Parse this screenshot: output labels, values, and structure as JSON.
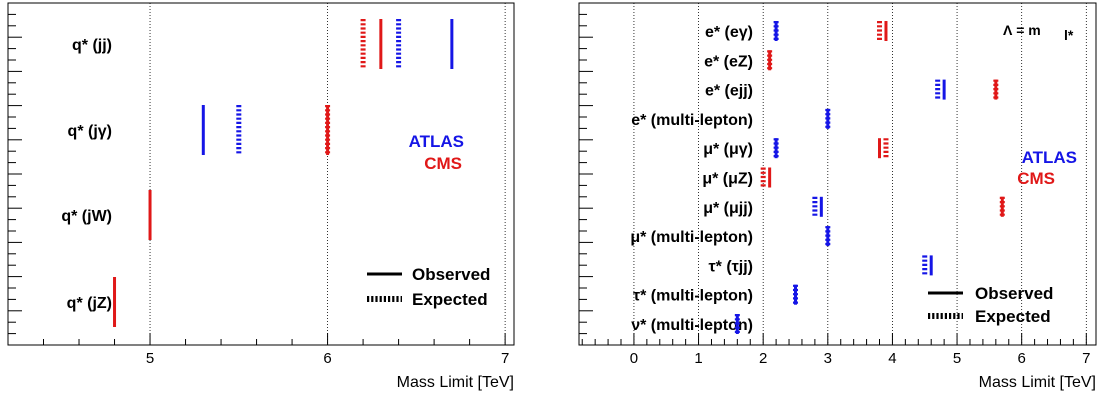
{
  "colors": {
    "atlas": "#1515e6",
    "cms": "#e01818",
    "axis": "#000000",
    "grid": "#000000"
  },
  "chart_data": [
    {
      "type": "scatter",
      "xlabel": "Mass Limit [TeV]",
      "xlim": [
        4.2,
        7.05
      ],
      "x_ticks": [
        5,
        6,
        7
      ],
      "grid": "vertical dotted at major ticks",
      "categories": [
        "q* (jj)",
        "q* (jγ)",
        "q* (jW)",
        "q* (jZ)"
      ],
      "series": [
        {
          "name": "ATLAS",
          "observed": [
            6.7,
            5.3,
            null,
            null
          ],
          "expected": [
            6.4,
            5.5,
            null,
            null
          ]
        },
        {
          "name": "CMS",
          "observed": [
            6.3,
            6.0,
            5.0,
            4.8
          ],
          "expected": [
            6.2,
            6.0,
            null,
            null
          ]
        }
      ],
      "legend": {
        "experiments": [
          "ATLAS",
          "CMS"
        ],
        "styles": [
          "Observed",
          "Expected"
        ],
        "placement": "right"
      }
    },
    {
      "type": "scatter",
      "xlabel": "Mass Limit [TeV]",
      "xlim": [
        -0.85,
        7.15
      ],
      "x_ticks": [
        0,
        1,
        2,
        3,
        4,
        5,
        6,
        7
      ],
      "grid": "vertical dotted at major ticks",
      "annotation": "Λ = m",
      "annotation_sub": "l*",
      "categories": [
        "e* (eγ)",
        "e* (eZ)",
        "e* (ejj)",
        "e* (multi-lepton)",
        "μ* (μγ)",
        "μ* (μZ)",
        "μ* (μjj)",
        "μ* (multi-lepton)",
        "τ* (τjj)",
        "τ* (multi-lepton)",
        "ν* (multi-lepton)"
      ],
      "series": [
        {
          "name": "ATLAS",
          "observed": [
            2.2,
            null,
            4.8,
            3.0,
            2.2,
            null,
            2.9,
            3.0,
            4.6,
            2.5,
            1.6
          ],
          "expected": [
            2.2,
            null,
            4.7,
            3.0,
            2.2,
            null,
            2.8,
            3.0,
            4.5,
            2.5,
            1.6
          ]
        },
        {
          "name": "CMS",
          "observed": [
            3.9,
            2.1,
            5.6,
            null,
            3.8,
            2.1,
            5.7,
            null,
            null,
            null,
            null
          ],
          "expected": [
            3.8,
            2.1,
            5.6,
            null,
            3.9,
            2.0,
            5.7,
            null,
            null,
            null,
            null
          ]
        }
      ],
      "legend": {
        "experiments": [
          "ATLAS",
          "CMS"
        ],
        "styles": [
          "Observed",
          "Expected"
        ],
        "placement": "right"
      }
    }
  ]
}
